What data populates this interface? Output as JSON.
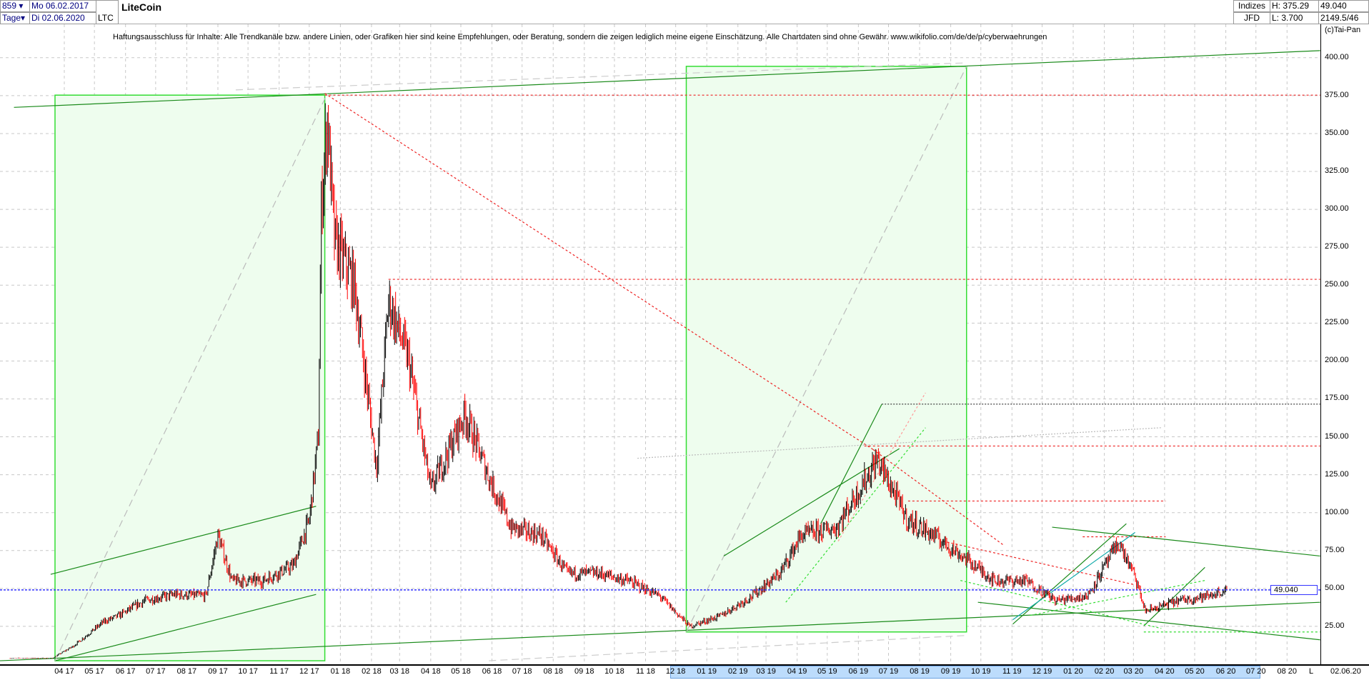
{
  "header": {
    "count": "859",
    "period": "Tage",
    "start_date": "Mo 06.02.2017",
    "end_date": "Di 02.06.2020",
    "symbol": "LTC",
    "title": "LiteCoin",
    "category": "Indizes",
    "source": "JFD",
    "high": "H: 375.29",
    "low": "L: 3.700",
    "last": "49.040",
    "info": "2149.5/46",
    "copyright": "(c)Tai-Pan"
  },
  "disclaimer": "Haftungsausschluss für Inhalte: Alle Trendkanäle bzw. andere Linien, oder Grafiken hier sind keine Empfehlungen, oder Beratung, sondern die zeigen lediglich meine eigene Einschätzung. Alle Chartdaten sind ohne Gewähr.  www.wikifolio.com/de/de/p/cyberwaehrungen",
  "footer": {
    "scale_mode": "L",
    "end_date": "02.06.20"
  },
  "colors": {
    "up": "#000000",
    "down": "#ff0000",
    "box_fill": "#eefdee",
    "box_border": "#33dd33",
    "trend": "#1a8a1a",
    "current_line": "#3333ff"
  },
  "chart_data": {
    "type": "candlestick",
    "title": "LiteCoin",
    "ylim": [
      0,
      410
    ],
    "yticks": [
      "25.00",
      "50.00",
      "75.00",
      "100.00",
      "125.00",
      "150.00",
      "175.00",
      "200.00",
      "225.00",
      "250.00",
      "275.00",
      "300.00",
      "325.00",
      "350.00",
      "375.00",
      "400.00"
    ],
    "current_price": "49.040",
    "xticks": [
      "04 17",
      "05 17",
      "06 17",
      "07 17",
      "08 17",
      "09 17",
      "10 17",
      "11 17",
      "12 17",
      "01 18",
      "02 18",
      "03 18",
      "04 18",
      "05 18",
      "06 18",
      "07 18",
      "08 18",
      "09 18",
      "10 18",
      "11 18",
      "12 18",
      "01 19",
      "02 19",
      "03 19",
      "04 19",
      "05 19",
      "06 19",
      "07 19",
      "08 19",
      "09 19",
      "10 19",
      "11 19",
      "12 19",
      "01 20",
      "02 20",
      "03 20",
      "04 20",
      "05 20",
      "06 20",
      "07 20",
      "08 20"
    ],
    "grid": true,
    "approx_close": [
      [
        "2017-02-06",
        4
      ],
      [
        "2017-03-20",
        4
      ],
      [
        "2017-04-10",
        12
      ],
      [
        "2017-05-10",
        28
      ],
      [
        "2017-05-25",
        32
      ],
      [
        "2017-06-20",
        42
      ],
      [
        "2017-07-20",
        46
      ],
      [
        "2017-08-20",
        45
      ],
      [
        "2017-09-01",
        85
      ],
      [
        "2017-09-15",
        55
      ],
      [
        "2017-10-15",
        55
      ],
      [
        "2017-11-15",
        65
      ],
      [
        "2017-12-01",
        95
      ],
      [
        "2017-12-10",
        150
      ],
      [
        "2017-12-13",
        300
      ],
      [
        "2017-12-19",
        360
      ],
      [
        "2017-12-26",
        280
      ],
      [
        "2018-01-15",
        250
      ],
      [
        "2018-02-06",
        130
      ],
      [
        "2018-02-18",
        240
      ],
      [
        "2018-03-10",
        200
      ],
      [
        "2018-04-01",
        115
      ],
      [
        "2018-04-25",
        150
      ],
      [
        "2018-05-05",
        165
      ],
      [
        "2018-05-31",
        120
      ],
      [
        "2018-06-20",
        90
      ],
      [
        "2018-07-20",
        85
      ],
      [
        "2018-08-15",
        60
      ],
      [
        "2018-09-15",
        60
      ],
      [
        "2018-10-15",
        55
      ],
      [
        "2018-11-15",
        45
      ],
      [
        "2018-12-15",
        25
      ],
      [
        "2019-01-15",
        32
      ],
      [
        "2019-02-15",
        45
      ],
      [
        "2019-03-15",
        60
      ],
      [
        "2019-04-05",
        85
      ],
      [
        "2019-05-10",
        90
      ],
      [
        "2019-06-20",
        135
      ],
      [
        "2019-07-20",
        95
      ],
      [
        "2019-08-15",
        85
      ],
      [
        "2019-09-15",
        70
      ],
      [
        "2019-10-15",
        55
      ],
      [
        "2019-11-15",
        55
      ],
      [
        "2019-12-15",
        42
      ],
      [
        "2020-01-15",
        45
      ],
      [
        "2020-02-15",
        80
      ],
      [
        "2020-03-01",
        60
      ],
      [
        "2020-03-13",
        35
      ],
      [
        "2020-04-15",
        42
      ],
      [
        "2020-05-15",
        45
      ],
      [
        "2020-06-02",
        49.04
      ]
    ]
  }
}
